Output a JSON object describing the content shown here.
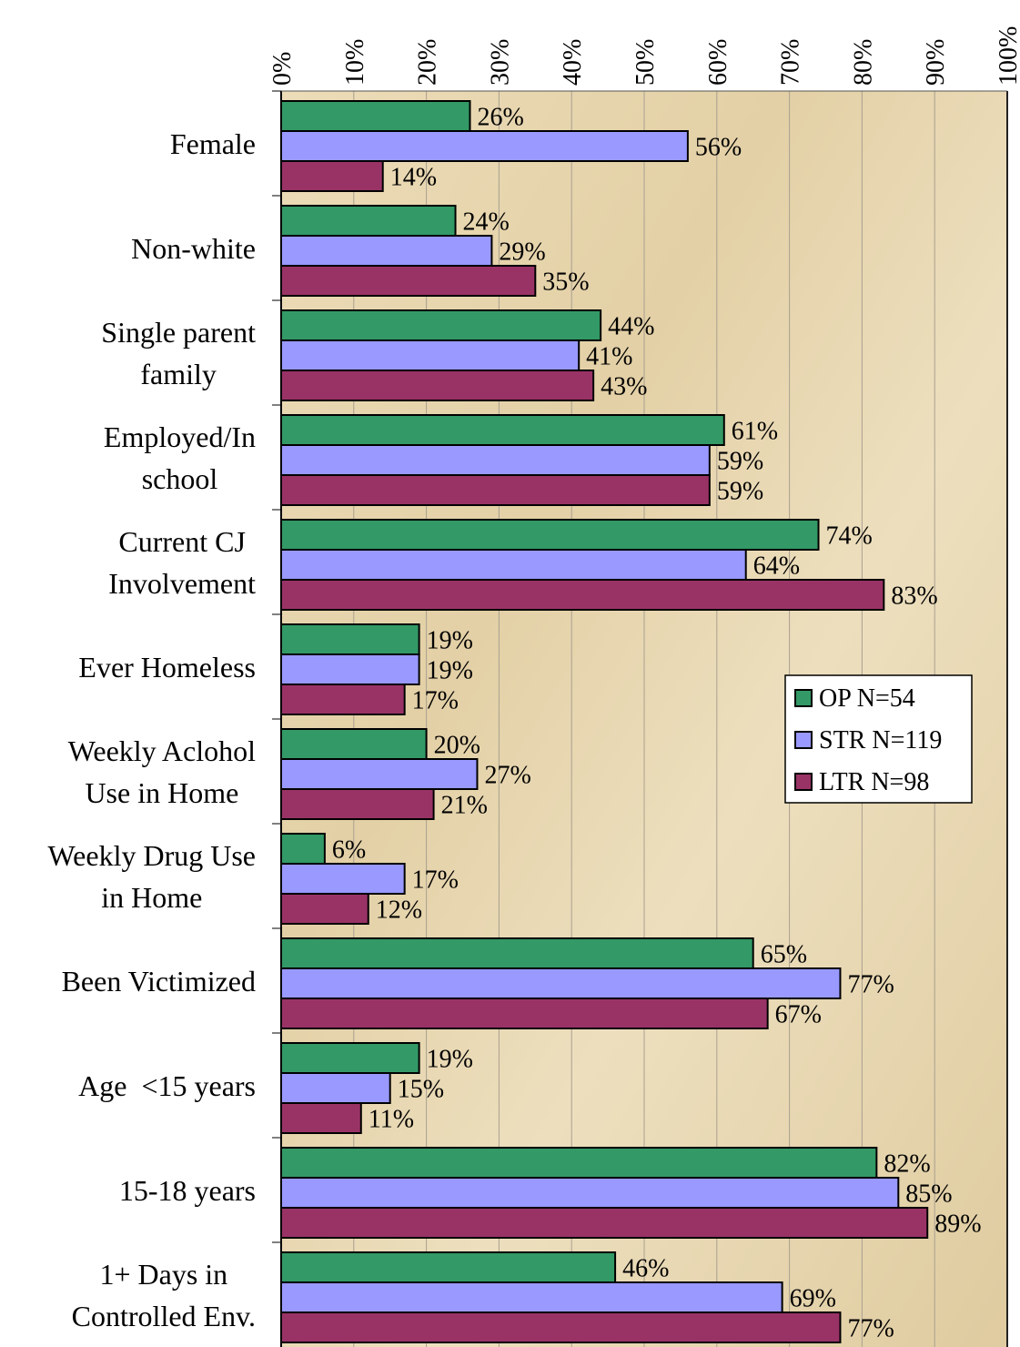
{
  "chart_data": {
    "type": "hbar",
    "categories": [
      "Female",
      "Non-white",
      "Single parent\nfamily",
      "Employed/In\nschool",
      "Current CJ\nInvolvement",
      "Ever Homeless",
      "Weekly Aclohol\nUse in Home",
      "Weekly Drug Use\nin Home",
      "Been Victimized",
      "Age  <15 years",
      "15-18 years",
      "1+ Days in\nControlled Env."
    ],
    "series": [
      {
        "name": "OP N=54",
        "color": "#339966",
        "values": [
          26,
          24,
          44,
          61,
          74,
          19,
          20,
          6,
          65,
          19,
          82,
          46
        ],
        "value_labels": [
          "26%",
          "24%",
          "44%",
          "61%",
          "74%",
          "19%",
          "20%",
          "6%",
          "65%",
          "19%",
          "82%",
          "46%"
        ]
      },
      {
        "name": "STR N=119",
        "color": "#9999ff",
        "values": [
          56,
          29,
          41,
          59,
          64,
          19,
          27,
          17,
          77,
          15,
          85,
          69
        ],
        "value_labels": [
          "56%",
          "29%",
          "41%",
          "59%",
          "64%",
          "19%",
          "27%",
          "17%",
          "77%",
          "15%",
          "85%",
          "69%"
        ]
      },
      {
        "name": "LTR N=98",
        "color": "#993366",
        "values": [
          14,
          35,
          43,
          59,
          83,
          17,
          21,
          12,
          67,
          11,
          89,
          77
        ],
        "value_labels": [
          "14%",
          "35%",
          "43%",
          "59%",
          "83%",
          "17%",
          "21%",
          "12%",
          "67%",
          "11%",
          "89%",
          "77%"
        ]
      }
    ],
    "xlim": [
      0,
      100
    ],
    "xticks": [
      {
        "value": 0,
        "label": "0%"
      },
      {
        "value": 10,
        "label": "10%"
      },
      {
        "value": 20,
        "label": "20%"
      },
      {
        "value": 30,
        "label": "30%"
      },
      {
        "value": 40,
        "label": "40%"
      },
      {
        "value": 50,
        "label": "50%"
      },
      {
        "value": 60,
        "label": "60%"
      },
      {
        "value": 70,
        "label": "70%"
      },
      {
        "value": 80,
        "label": "80%"
      },
      {
        "value": 90,
        "label": "90%"
      },
      {
        "value": 100,
        "label": "100%"
      }
    ],
    "grid": true,
    "legend": "right"
  }
}
